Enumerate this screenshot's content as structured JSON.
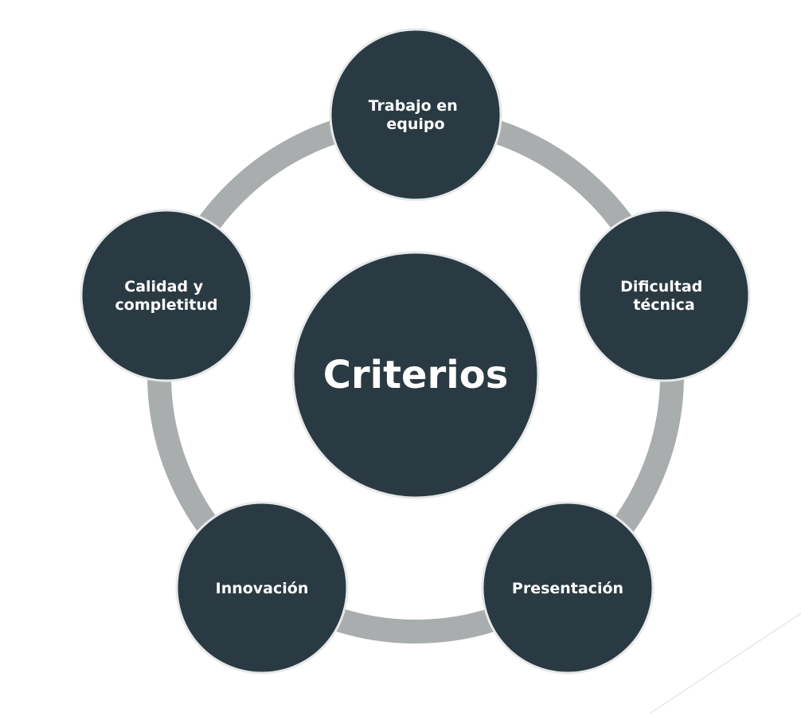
{
  "diagram": {
    "center": {
      "label": "Criterios"
    },
    "nodes": [
      {
        "id": "trabajo-en-equipo",
        "lines": [
          "Trabajo en",
          "equipo"
        ]
      },
      {
        "id": "dificultad-tecnica",
        "lines": [
          "Dificultad",
          "técnica"
        ]
      },
      {
        "id": "presentacion",
        "lines": [
          "Presentación"
        ]
      },
      {
        "id": "innovacion",
        "lines": [
          "Innovación"
        ]
      },
      {
        "id": "calidad-y-completitud",
        "lines": [
          "Calidad y",
          "completitud"
        ]
      }
    ]
  },
  "colors": {
    "node_fill": "#2a3a42",
    "ring": "#a9adad",
    "text": "#ffffff",
    "background": "#ffffff"
  }
}
